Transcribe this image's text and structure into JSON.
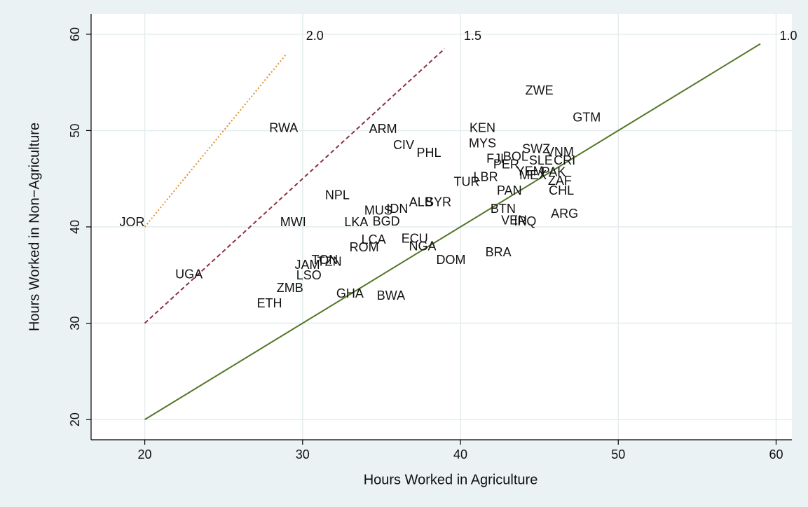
{
  "chart_data": {
    "type": "scatter",
    "x_label": "Hours Worked in Agriculture",
    "y_label": "Hours Worked in Non−Agriculture",
    "xlim": [
      16.6,
      61
    ],
    "ylim": [
      17.9,
      62.1
    ],
    "xticks": [
      20,
      30,
      40,
      50,
      60
    ],
    "yticks": [
      20,
      30,
      40,
      50,
      60
    ],
    "grid": true,
    "labels": [
      "JOR",
      "UGA",
      "RWA",
      "NPL",
      "MWI",
      "ARM",
      "CIV",
      "PHL",
      "KEN",
      "MYS",
      "ZWE",
      "GTM",
      "FJI",
      "BOL",
      "SWZ",
      "VNM",
      "PER",
      "SLE",
      "CRI",
      "LBR",
      "TUR",
      "YEM",
      "MEX",
      "PAK",
      "ZAF",
      "PAN",
      "CHL",
      "ALB",
      "SYR",
      "IDN",
      "MUS",
      "BGD",
      "LKA",
      "BTN",
      "VEN",
      "IRQ",
      "ARG",
      "ECU",
      "LCA",
      "NGA",
      "ROM",
      "DOM",
      "BRA",
      "TON",
      "TZN",
      "JAM",
      "LSO",
      "ZMB",
      "ETH",
      "GHA",
      "BWA"
    ],
    "x": [
      19.2,
      22.8,
      28.8,
      32.2,
      29.4,
      35.1,
      36.4,
      38.0,
      41.4,
      41.4,
      45.0,
      48.0,
      42.2,
      43.5,
      44.8,
      46.3,
      42.9,
      45.1,
      46.6,
      41.6,
      40.4,
      44.4,
      44.6,
      45.9,
      46.3,
      43.1,
      46.4,
      37.5,
      38.6,
      36.0,
      34.8,
      35.3,
      33.4,
      42.7,
      43.4,
      44.1,
      46.6,
      37.1,
      34.5,
      37.6,
      33.9,
      39.4,
      42.4,
      31.4,
      31.7,
      30.3,
      30.4,
      29.2,
      27.9,
      33.0,
      35.6
    ],
    "values": [
      40.4,
      35.0,
      50.2,
      43.2,
      40.4,
      50.1,
      48.4,
      47.6,
      50.2,
      48.6,
      54.1,
      51.3,
      47.0,
      47.2,
      48.0,
      47.7,
      46.4,
      46.8,
      46.8,
      45.1,
      44.6,
      45.7,
      45.3,
      45.6,
      44.7,
      43.7,
      43.7,
      42.5,
      42.5,
      41.8,
      41.6,
      40.5,
      40.4,
      41.8,
      40.6,
      40.5,
      41.3,
      38.7,
      38.6,
      37.9,
      37.8,
      36.5,
      37.3,
      36.5,
      36.3,
      36.0,
      34.9,
      33.6,
      32.0,
      33.0,
      32.8
    ],
    "reference_lines": [
      {
        "label": "2.0",
        "x": [
          20,
          29
        ],
        "y": [
          40,
          58
        ],
        "color": "#e0902a",
        "dash": "2,3"
      },
      {
        "label": "1.5",
        "x": [
          20,
          39
        ],
        "y": [
          30,
          58.5
        ],
        "color": "#8e2f3f",
        "dash": "6,4"
      },
      {
        "label": "1.0",
        "x": [
          20,
          59
        ],
        "y": [
          20,
          59
        ],
        "color": "#55762a",
        "dash": "none"
      }
    ]
  }
}
